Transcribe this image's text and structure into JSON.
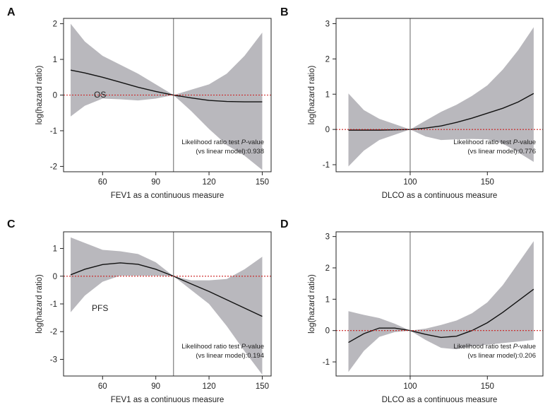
{
  "row_labels": [
    "OS",
    "PFS"
  ],
  "chart_data": [
    {
      "panel": "A",
      "type": "line",
      "xlabel": "FEV1 as a continuous measure",
      "ylabel": "log(hazard ratio)",
      "xlim": [
        38,
        155
      ],
      "ylim": [
        -2.15,
        2.15
      ],
      "xticks": [
        60,
        90,
        120,
        150
      ],
      "yticks": [
        -2,
        -1,
        0,
        1,
        2
      ],
      "reference_x": 100,
      "reference_y": 0,
      "annotation": [
        "Likelihood ratio test ",
        "P",
        "-value",
        "(vs linear model):0.938"
      ],
      "series": [
        {
          "x": [
            42,
            50,
            60,
            70,
            80,
            90,
            100,
            110,
            120,
            130,
            140,
            150
          ],
          "values": [
            0.7,
            0.62,
            0.5,
            0.36,
            0.22,
            0.1,
            0.0,
            -0.08,
            -0.15,
            -0.18,
            -0.19,
            -0.19
          ],
          "lower": [
            -0.6,
            -0.3,
            -0.1,
            -0.12,
            -0.15,
            -0.1,
            0.0,
            -0.45,
            -0.95,
            -1.4,
            -1.7,
            -2.1
          ],
          "upper": [
            2.0,
            1.5,
            1.1,
            0.85,
            0.6,
            0.3,
            0.0,
            0.15,
            0.3,
            0.6,
            1.1,
            1.75
          ]
        }
      ]
    },
    {
      "panel": "B",
      "type": "line",
      "xlabel": "DLCO as a continuous measure",
      "ylabel": "log(hazard ratio)",
      "xlim": [
        52,
        186
      ],
      "ylim": [
        -1.2,
        3.15
      ],
      "xticks": [
        100,
        150
      ],
      "yticks": [
        -1,
        0,
        1,
        2,
        3
      ],
      "reference_x": 100,
      "reference_y": 0,
      "annotation": [
        "Likelihood ratio test ",
        "P",
        "-value",
        "(vs linear model):0.776"
      ],
      "series": [
        {
          "x": [
            60,
            70,
            80,
            90,
            100,
            110,
            120,
            130,
            140,
            150,
            160,
            170,
            180
          ],
          "values": [
            -0.02,
            -0.02,
            -0.02,
            -0.01,
            0.0,
            0.04,
            0.1,
            0.2,
            0.32,
            0.46,
            0.6,
            0.78,
            1.02
          ],
          "lower": [
            -1.05,
            -0.6,
            -0.3,
            -0.15,
            0.0,
            -0.2,
            -0.3,
            -0.28,
            -0.27,
            -0.28,
            -0.4,
            -0.65,
            -0.92
          ],
          "upper": [
            1.02,
            0.55,
            0.3,
            0.15,
            0.0,
            0.25,
            0.5,
            0.7,
            0.95,
            1.25,
            1.7,
            2.25,
            2.9
          ]
        }
      ]
    },
    {
      "panel": "C",
      "type": "line",
      "xlabel": "FEV1 as a continuous measure",
      "ylabel": "log(hazard ratio)",
      "xlim": [
        38,
        155
      ],
      "ylim": [
        -3.6,
        1.6
      ],
      "xticks": [
        60,
        90,
        120,
        150
      ],
      "yticks": [
        -3,
        -2,
        -1,
        0,
        1
      ],
      "reference_x": 100,
      "reference_y": 0,
      "annotation": [
        "Likelihood ratio test ",
        "P",
        "-value",
        "(vs linear model):0.194"
      ],
      "series": [
        {
          "x": [
            42,
            50,
            60,
            70,
            80,
            90,
            100,
            110,
            120,
            130,
            140,
            150
          ],
          "values": [
            0.05,
            0.25,
            0.42,
            0.48,
            0.43,
            0.25,
            0.0,
            -0.28,
            -0.55,
            -0.85,
            -1.15,
            -1.45
          ],
          "lower": [
            -1.3,
            -0.7,
            -0.2,
            0.02,
            0.02,
            0.02,
            0.0,
            -0.5,
            -1.0,
            -1.8,
            -2.7,
            -3.55
          ],
          "upper": [
            1.4,
            1.2,
            0.95,
            0.9,
            0.8,
            0.5,
            0.0,
            -0.15,
            -0.15,
            -0.1,
            0.25,
            0.7
          ]
        }
      ]
    },
    {
      "panel": "D",
      "type": "line",
      "xlabel": "DLCO as a continuous measure",
      "ylabel": "log(hazard ratio)",
      "xlim": [
        52,
        186
      ],
      "ylim": [
        -1.45,
        3.15
      ],
      "xticks": [
        100,
        150
      ],
      "yticks": [
        -1,
        0,
        1,
        2,
        3
      ],
      "reference_x": 100,
      "reference_y": 0,
      "annotation": [
        "Likelihood ratio test ",
        "P",
        "-value",
        "(vs linear model):0.206"
      ],
      "series": [
        {
          "x": [
            60,
            70,
            80,
            90,
            100,
            110,
            120,
            130,
            140,
            150,
            160,
            170,
            180
          ],
          "values": [
            -0.38,
            -0.1,
            0.08,
            0.08,
            0.0,
            -0.12,
            -0.22,
            -0.18,
            0.0,
            0.25,
            0.58,
            0.95,
            1.32
          ],
          "lower": [
            -1.32,
            -0.65,
            -0.2,
            -0.05,
            0.0,
            -0.3,
            -0.55,
            -0.6,
            -0.5,
            -0.45,
            -0.4,
            -0.35,
            -0.3
          ],
          "upper": [
            0.62,
            0.5,
            0.4,
            0.22,
            0.0,
            0.06,
            0.18,
            0.32,
            0.55,
            0.9,
            1.45,
            2.15,
            2.85
          ]
        }
      ]
    }
  ]
}
